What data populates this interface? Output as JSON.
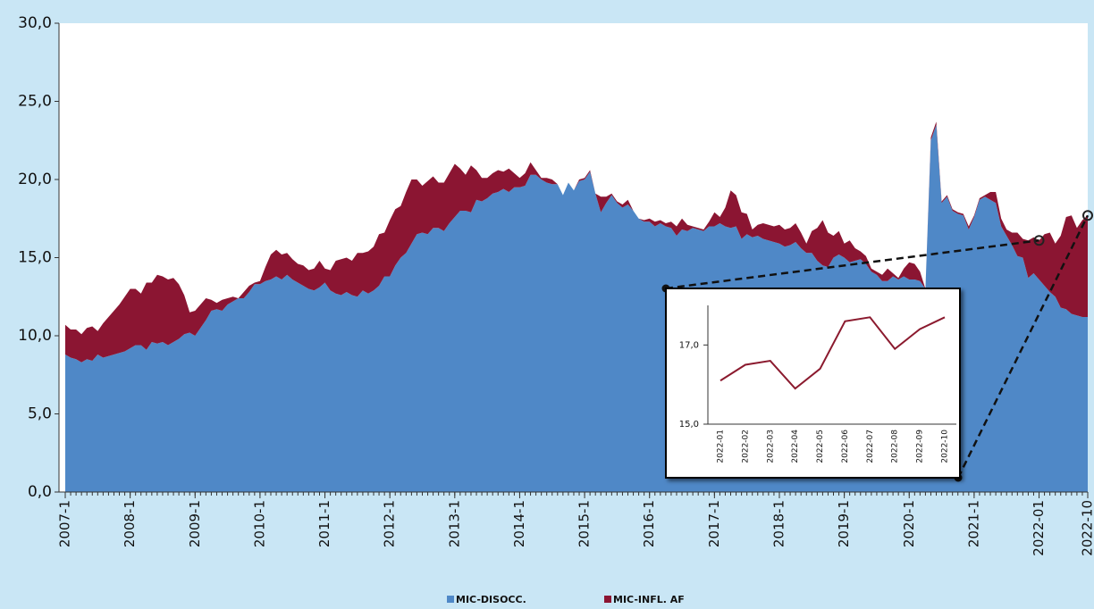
{
  "chart_data": [
    {
      "type": "area",
      "stacked": true,
      "categories": [
        "2007-1",
        null,
        null,
        null,
        null,
        null,
        null,
        null,
        null,
        null,
        null,
        null,
        "2008-1",
        null,
        null,
        null,
        null,
        null,
        null,
        null,
        null,
        null,
        null,
        null,
        "2009-1",
        null,
        null,
        null,
        null,
        null,
        null,
        null,
        null,
        null,
        null,
        null,
        "2010-1",
        null,
        null,
        null,
        null,
        null,
        null,
        null,
        null,
        null,
        null,
        null,
        "2011-1",
        null,
        null,
        null,
        null,
        null,
        null,
        null,
        null,
        null,
        null,
        null,
        "2012-1",
        null,
        null,
        null,
        null,
        null,
        null,
        null,
        null,
        null,
        null,
        null,
        "2013-1",
        null,
        null,
        null,
        null,
        null,
        null,
        null,
        null,
        null,
        null,
        null,
        "2014-1",
        null,
        null,
        null,
        null,
        null,
        null,
        null,
        null,
        null,
        null,
        null,
        "2015-1",
        null,
        null,
        null,
        null,
        null,
        null,
        null,
        null,
        null,
        null,
        null,
        "2016-1",
        null,
        null,
        null,
        null,
        null,
        null,
        null,
        null,
        null,
        null,
        null,
        "2017-1",
        null,
        null,
        null,
        null,
        null,
        null,
        null,
        null,
        null,
        null,
        null,
        "2018-1",
        null,
        null,
        null,
        null,
        null,
        null,
        null,
        null,
        null,
        null,
        null,
        "2019-1",
        null,
        null,
        null,
        null,
        null,
        null,
        null,
        null,
        null,
        null,
        null,
        "2020-1",
        null,
        null,
        null,
        null,
        null,
        null,
        null,
        null,
        null,
        null,
        null,
        "2021-1",
        null,
        null,
        null,
        null,
        null,
        null,
        null,
        null,
        null,
        null,
        null,
        "2022-01",
        null,
        null,
        null,
        null,
        null,
        null,
        null,
        null,
        "2022-10"
      ],
      "series": [
        {
          "name": "MIC-DISOCC.",
          "color": "#4f88c7",
          "values": [
            8.8,
            8.6,
            8.5,
            8.3,
            8.5,
            8.4,
            8.8,
            8.6,
            8.7,
            8.8,
            8.9,
            9.0,
            9.2,
            9.4,
            9.4,
            9.1,
            9.6,
            9.5,
            9.6,
            9.4,
            9.6,
            9.8,
            10.1,
            10.2,
            10.0,
            10.5,
            11.0,
            11.6,
            11.7,
            11.6,
            12.0,
            12.2,
            12.4,
            12.4,
            12.8,
            13.3,
            13.3,
            13.5,
            13.6,
            13.8,
            13.6,
            13.9,
            13.6,
            13.4,
            13.2,
            13.0,
            12.9,
            13.1,
            13.4,
            12.9,
            12.7,
            12.6,
            12.8,
            12.6,
            12.5,
            12.9,
            12.7,
            12.9,
            13.2,
            13.8,
            13.8,
            14.5,
            15.0,
            15.3,
            15.9,
            16.5,
            16.6,
            16.5,
            16.9,
            16.9,
            16.7,
            17.2,
            17.6,
            18.0,
            18.0,
            17.9,
            18.7,
            18.6,
            18.8,
            19.1,
            19.2,
            19.4,
            19.2,
            19.5,
            19.5,
            19.6,
            20.3,
            20.3,
            20.0,
            19.8,
            19.7,
            19.7,
            19.0,
            19.8,
            19.3,
            19.9,
            20.0,
            20.5,
            19.1,
            17.9,
            18.5,
            19.0,
            18.5,
            18.2,
            18.4,
            18.0,
            17.5,
            17.3,
            17.3,
            17.0,
            17.2,
            17.0,
            16.9,
            16.4,
            16.8,
            16.7,
            16.9,
            16.8,
            16.7,
            17.0,
            17.0,
            17.2,
            17.0,
            16.9,
            17.0,
            16.2,
            16.5,
            16.3,
            16.4,
            16.2,
            16.1,
            16.0,
            15.9,
            15.7,
            15.8,
            16.0,
            15.6,
            15.3,
            15.3,
            14.8,
            14.5,
            14.4,
            15.0,
            15.2,
            15.0,
            14.7,
            14.8,
            14.9,
            14.6,
            14.1,
            13.9,
            13.5,
            13.5,
            13.8,
            13.6,
            13.8,
            13.6,
            13.6,
            13.5,
            13.0,
            22.5,
            23.5,
            18.5,
            18.9,
            18.0,
            17.8,
            17.7,
            16.8,
            17.6,
            18.7,
            18.9,
            18.7,
            18.5,
            17.0,
            16.4,
            15.8,
            15.1,
            15.0,
            13.7,
            14.0,
            13.6,
            13.2,
            12.8,
            12.5,
            11.8,
            11.7,
            11.4,
            11.3,
            11.2,
            11.2
          ]
        },
        {
          "name": "MIC-INFL. AF",
          "color": "#8b1532",
          "values": [
            1.9,
            1.8,
            1.9,
            1.8,
            2.0,
            2.2,
            1.5,
            2.2,
            2.5,
            2.8,
            3.1,
            3.5,
            3.8,
            3.6,
            3.3,
            4.3,
            3.8,
            4.4,
            4.2,
            4.2,
            4.1,
            3.5,
            2.5,
            1.3,
            1.6,
            1.5,
            1.4,
            0.7,
            0.4,
            0.7,
            0.4,
            0.3,
            0.0,
            0.4,
            0.4,
            0.1,
            0.2,
            0.9,
            1.6,
            1.7,
            1.6,
            1.4,
            1.3,
            1.2,
            1.3,
            1.2,
            1.4,
            1.7,
            0.9,
            1.3,
            2.1,
            2.3,
            2.2,
            2.2,
            2.8,
            2.4,
            2.7,
            2.8,
            3.3,
            2.8,
            3.6,
            3.6,
            3.3,
            3.9,
            4.1,
            3.5,
            3.0,
            3.4,
            3.3,
            2.9,
            3.1,
            3.2,
            3.4,
            2.7,
            2.3,
            3.0,
            1.9,
            1.5,
            1.3,
            1.3,
            1.4,
            1.1,
            1.5,
            0.9,
            0.6,
            0.8,
            0.8,
            0.3,
            0.1,
            0.3,
            0.3,
            0.0,
            0.0,
            0.0,
            0.0,
            0.1,
            0.1,
            0.1,
            0.0,
            1.0,
            0.4,
            0.1,
            0.1,
            0.2,
            0.3,
            0.0,
            0.0,
            0.1,
            0.2,
            0.3,
            0.2,
            0.2,
            0.4,
            0.6,
            0.7,
            0.4,
            0.1,
            0.1,
            0.1,
            0.3,
            0.9,
            0.4,
            1.2,
            2.4,
            2.0,
            1.7,
            1.3,
            0.5,
            0.7,
            1.0,
            1.0,
            1.0,
            1.2,
            1.1,
            1.1,
            1.2,
            1.0,
            0.6,
            1.4,
            2.1,
            2.9,
            2.2,
            1.4,
            1.5,
            0.9,
            1.4,
            0.8,
            0.5,
            0.5,
            0.2,
            0.2,
            0.4,
            0.8,
            0.2,
            0.1,
            0.5,
            1.1,
            1.0,
            0.6,
            0.0,
            0.2,
            0.2,
            0.1,
            0.1,
            0.1,
            0.1,
            0.1,
            0.2,
            0.1,
            0.1,
            0.1,
            0.5,
            0.7,
            0.5,
            0.4,
            0.8,
            1.5,
            1.2,
            2.4,
            2.3,
            2.5,
            3.3,
            3.8,
            3.4,
            4.6,
            5.9,
            6.3,
            5.6,
            6.2,
            6.5
          ]
        }
      ],
      "ylim": [
        0,
        30
      ],
      "yticks": [
        {
          "value": 0,
          "label": "0,0"
        },
        {
          "value": 5,
          "label": "5,0"
        },
        {
          "value": 10,
          "label": "10,0"
        },
        {
          "value": 15,
          "label": "15,0"
        },
        {
          "value": 20,
          "label": "20,0"
        },
        {
          "value": 25,
          "label": "25,0"
        },
        {
          "value": 30,
          "label": "30,0"
        }
      ],
      "legend": "bottom"
    },
    {
      "type": "line",
      "categories": [
        "2022-01",
        "2022-02",
        "2022-03",
        "2022-04",
        "2022-05",
        "2022-06",
        "2022-07",
        "2022-08",
        "2022-09",
        "2022-10"
      ],
      "values": [
        16.1,
        16.5,
        16.6,
        15.9,
        16.4,
        17.6,
        17.7,
        16.9,
        17.4,
        17.7
      ],
      "color": "#8b1a2e",
      "ylim": [
        15,
        18
      ],
      "yticks": [
        {
          "value": 15,
          "label": "15,0"
        },
        {
          "value": 17,
          "label": "17,0"
        }
      ]
    }
  ]
}
